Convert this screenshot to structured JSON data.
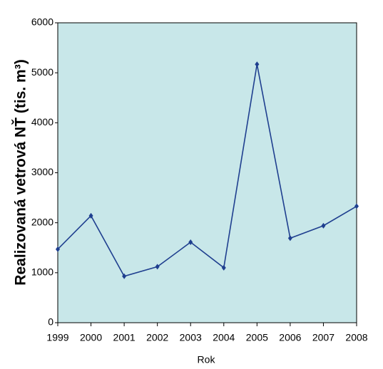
{
  "chart_data": {
    "type": "line",
    "x_label": "Rok",
    "y_label": "Realizovaná  vetrová NŤ (tis. m³)",
    "x": [
      1999,
      2000,
      2001,
      2002,
      2003,
      2004,
      2005,
      2006,
      2007,
      2008
    ],
    "series": [
      {
        "color": "#1f3f8f",
        "values": [
          1470,
          2140,
          930,
          1120,
          1610,
          1100,
          5170,
          1690,
          1940,
          2330
        ]
      }
    ],
    "xlim": [
      1999,
      2008
    ],
    "xticks": [
      1999,
      2000,
      2001,
      2002,
      2003,
      2004,
      2005,
      2006,
      2007,
      2008
    ],
    "ylim": [
      0,
      6000
    ],
    "yticks": [
      0,
      1000,
      2000,
      3000,
      4000,
      5000,
      6000
    ],
    "grid": false,
    "plot_background": "#c8e7e9"
  }
}
